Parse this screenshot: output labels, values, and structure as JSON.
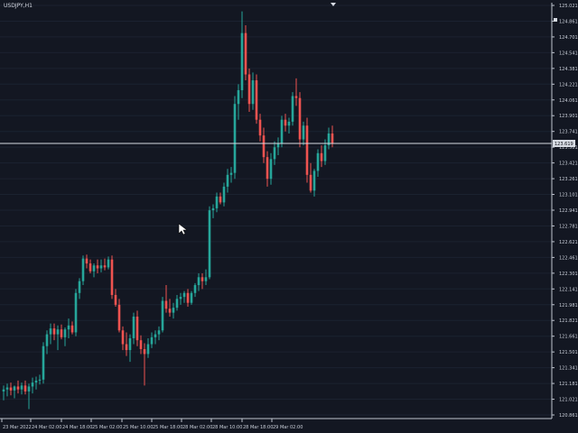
{
  "chart": {
    "symbol_label": "USDJPY,H1",
    "current_price_label": "123.619"
  },
  "colors": {
    "background": "#131722",
    "grid": "#1b2230",
    "axis": "#bfc4cf",
    "text": "#c9ced8",
    "bull": "#26a69a",
    "bear": "#ef5350",
    "current_line": "#d7dbe3"
  },
  "icons": {
    "top_marker": "triangle-down-icon",
    "right_marker": "small-square-icon",
    "cursor": "mouse-pointer-icon"
  },
  "chart_data": {
    "type": "candlestick",
    "title": "USDJPY,H1",
    "x_tick_labels": [
      "23 Mar 2022",
      "24 Mar 02:00",
      "24 Mar 18:00",
      "25 Mar 02:00",
      "25 Mar 10:00",
      "25 Mar 18:00",
      "28 Mar 02:00",
      "28 Mar 10:00",
      "28 Mar 18:00",
      "29 Mar 02:00"
    ],
    "y_ticks": [
      125.021,
      124.861,
      124.701,
      124.541,
      124.381,
      124.221,
      124.061,
      123.901,
      123.741,
      123.581,
      123.421,
      123.261,
      123.101,
      122.941,
      122.781,
      122.621,
      122.461,
      122.301,
      122.141,
      121.981,
      121.821,
      121.661,
      121.501,
      121.341,
      121.181,
      121.021,
      120.861
    ],
    "ylim": [
      120.861,
      125.021
    ],
    "current_price": 123.619,
    "candles": [
      {
        "o": 121.1,
        "h": 121.16,
        "l": 121.01,
        "c": 121.12
      },
      {
        "o": 121.12,
        "h": 121.18,
        "l": 121.05,
        "c": 121.14
      },
      {
        "o": 121.14,
        "h": 121.19,
        "l": 121.06,
        "c": 121.11
      },
      {
        "o": 121.11,
        "h": 121.16,
        "l": 121.03,
        "c": 121.15
      },
      {
        "o": 121.15,
        "h": 121.21,
        "l": 121.08,
        "c": 121.12
      },
      {
        "o": 121.12,
        "h": 121.19,
        "l": 121.07,
        "c": 121.16
      },
      {
        "o": 121.16,
        "h": 121.21,
        "l": 121.07,
        "c": 121.1
      },
      {
        "o": 121.1,
        "h": 121.18,
        "l": 120.92,
        "c": 121.15
      },
      {
        "o": 121.15,
        "h": 121.24,
        "l": 121.08,
        "c": 121.19
      },
      {
        "o": 121.19,
        "h": 121.25,
        "l": 121.12,
        "c": 121.21
      },
      {
        "o": 121.21,
        "h": 121.27,
        "l": 121.17,
        "c": 121.22
      },
      {
        "o": 121.22,
        "h": 121.6,
        "l": 121.18,
        "c": 121.56
      },
      {
        "o": 121.56,
        "h": 121.72,
        "l": 121.48,
        "c": 121.68
      },
      {
        "o": 121.68,
        "h": 121.79,
        "l": 121.58,
        "c": 121.74
      },
      {
        "o": 121.74,
        "h": 121.79,
        "l": 121.62,
        "c": 121.68
      },
      {
        "o": 121.68,
        "h": 121.77,
        "l": 121.52,
        "c": 121.73
      },
      {
        "o": 121.73,
        "h": 121.78,
        "l": 121.63,
        "c": 121.65
      },
      {
        "o": 121.65,
        "h": 121.75,
        "l": 121.56,
        "c": 121.73
      },
      {
        "o": 121.73,
        "h": 121.84,
        "l": 121.64,
        "c": 121.77
      },
      {
        "o": 121.77,
        "h": 121.81,
        "l": 121.68,
        "c": 121.7
      },
      {
        "o": 121.7,
        "h": 122.14,
        "l": 121.66,
        "c": 122.1
      },
      {
        "o": 122.1,
        "h": 122.25,
        "l": 122.04,
        "c": 122.22
      },
      {
        "o": 122.22,
        "h": 122.48,
        "l": 122.18,
        "c": 122.45
      },
      {
        "o": 122.45,
        "h": 122.49,
        "l": 122.35,
        "c": 122.4
      },
      {
        "o": 122.4,
        "h": 122.44,
        "l": 122.3,
        "c": 122.32
      },
      {
        "o": 122.32,
        "h": 122.4,
        "l": 122.26,
        "c": 122.38
      },
      {
        "o": 122.38,
        "h": 122.44,
        "l": 122.3,
        "c": 122.35
      },
      {
        "o": 122.35,
        "h": 122.44,
        "l": 122.31,
        "c": 122.38
      },
      {
        "o": 122.38,
        "h": 122.45,
        "l": 122.33,
        "c": 122.36
      },
      {
        "o": 122.36,
        "h": 122.47,
        "l": 122.34,
        "c": 122.44
      },
      {
        "o": 122.44,
        "h": 122.48,
        "l": 122.04,
        "c": 122.08
      },
      {
        "o": 122.08,
        "h": 122.14,
        "l": 121.96,
        "c": 121.98
      },
      {
        "o": 121.98,
        "h": 122.04,
        "l": 121.7,
        "c": 121.72
      },
      {
        "o": 121.72,
        "h": 121.76,
        "l": 121.52,
        "c": 121.58
      },
      {
        "o": 121.58,
        "h": 121.7,
        "l": 121.46,
        "c": 121.52
      },
      {
        "o": 121.52,
        "h": 121.68,
        "l": 121.4,
        "c": 121.64
      },
      {
        "o": 121.64,
        "h": 121.9,
        "l": 121.58,
        "c": 121.86
      },
      {
        "o": 121.86,
        "h": 121.92,
        "l": 121.56,
        "c": 121.62
      },
      {
        "o": 121.62,
        "h": 121.67,
        "l": 121.48,
        "c": 121.53
      },
      {
        "o": 121.53,
        "h": 121.59,
        "l": 121.16,
        "c": 121.48
      },
      {
        "o": 121.48,
        "h": 121.64,
        "l": 121.44,
        "c": 121.58
      },
      {
        "o": 121.58,
        "h": 121.7,
        "l": 121.54,
        "c": 121.65
      },
      {
        "o": 121.65,
        "h": 121.72,
        "l": 121.58,
        "c": 121.68
      },
      {
        "o": 121.68,
        "h": 121.76,
        "l": 121.62,
        "c": 121.72
      },
      {
        "o": 121.72,
        "h": 122.06,
        "l": 121.7,
        "c": 122.02
      },
      {
        "o": 122.02,
        "h": 122.18,
        "l": 121.9,
        "c": 121.94
      },
      {
        "o": 121.94,
        "h": 122.04,
        "l": 121.86,
        "c": 121.9
      },
      {
        "o": 121.9,
        "h": 122.0,
        "l": 121.84,
        "c": 121.95
      },
      {
        "o": 121.95,
        "h": 122.08,
        "l": 121.92,
        "c": 122.04
      },
      {
        "o": 122.04,
        "h": 122.1,
        "l": 121.98,
        "c": 122.06
      },
      {
        "o": 122.06,
        "h": 122.12,
        "l": 122.0,
        "c": 122.1
      },
      {
        "o": 122.1,
        "h": 122.14,
        "l": 121.96,
        "c": 122.0
      },
      {
        "o": 122.0,
        "h": 122.12,
        "l": 121.98,
        "c": 122.1
      },
      {
        "o": 122.1,
        "h": 122.2,
        "l": 122.06,
        "c": 122.18
      },
      {
        "o": 122.18,
        "h": 122.3,
        "l": 122.12,
        "c": 122.26
      },
      {
        "o": 122.26,
        "h": 122.3,
        "l": 122.14,
        "c": 122.22
      },
      {
        "o": 122.22,
        "h": 122.34,
        "l": 122.18,
        "c": 122.26
      },
      {
        "o": 122.26,
        "h": 122.98,
        "l": 122.24,
        "c": 122.94
      },
      {
        "o": 122.94,
        "h": 123.0,
        "l": 122.86,
        "c": 122.96
      },
      {
        "o": 122.96,
        "h": 123.12,
        "l": 122.92,
        "c": 123.08
      },
      {
        "o": 123.08,
        "h": 123.12,
        "l": 123.0,
        "c": 123.02
      },
      {
        "o": 123.02,
        "h": 123.22,
        "l": 122.98,
        "c": 123.18
      },
      {
        "o": 123.18,
        "h": 123.36,
        "l": 123.12,
        "c": 123.3
      },
      {
        "o": 123.3,
        "h": 123.38,
        "l": 123.22,
        "c": 123.32
      },
      {
        "o": 123.32,
        "h": 124.1,
        "l": 123.26,
        "c": 124.02
      },
      {
        "o": 124.02,
        "h": 124.22,
        "l": 123.86,
        "c": 124.16
      },
      {
        "o": 124.16,
        "h": 124.96,
        "l": 124.08,
        "c": 124.74
      },
      {
        "o": 124.74,
        "h": 124.82,
        "l": 124.26,
        "c": 124.32
      },
      {
        "o": 124.32,
        "h": 124.38,
        "l": 123.94,
        "c": 124.02
      },
      {
        "o": 124.02,
        "h": 124.34,
        "l": 123.96,
        "c": 124.26
      },
      {
        "o": 124.26,
        "h": 124.32,
        "l": 123.82,
        "c": 123.86
      },
      {
        "o": 123.86,
        "h": 123.92,
        "l": 123.64,
        "c": 123.7
      },
      {
        "o": 123.7,
        "h": 123.78,
        "l": 123.42,
        "c": 123.48
      },
      {
        "o": 123.48,
        "h": 123.54,
        "l": 123.18,
        "c": 123.26
      },
      {
        "o": 123.26,
        "h": 123.52,
        "l": 123.2,
        "c": 123.46
      },
      {
        "o": 123.46,
        "h": 123.64,
        "l": 123.4,
        "c": 123.58
      },
      {
        "o": 123.58,
        "h": 123.68,
        "l": 123.5,
        "c": 123.62
      },
      {
        "o": 123.62,
        "h": 123.9,
        "l": 123.58,
        "c": 123.86
      },
      {
        "o": 123.86,
        "h": 123.92,
        "l": 123.74,
        "c": 123.8
      },
      {
        "o": 123.8,
        "h": 123.88,
        "l": 123.72,
        "c": 123.84
      },
      {
        "o": 123.84,
        "h": 124.14,
        "l": 123.8,
        "c": 124.1
      },
      {
        "o": 124.1,
        "h": 124.28,
        "l": 124.0,
        "c": 124.08
      },
      {
        "o": 124.08,
        "h": 124.14,
        "l": 123.58,
        "c": 123.66
      },
      {
        "o": 123.66,
        "h": 123.84,
        "l": 123.6,
        "c": 123.8
      },
      {
        "o": 123.8,
        "h": 123.88,
        "l": 123.22,
        "c": 123.3
      },
      {
        "o": 123.3,
        "h": 123.42,
        "l": 123.12,
        "c": 123.14
      },
      {
        "o": 123.14,
        "h": 123.36,
        "l": 123.08,
        "c": 123.34
      },
      {
        "o": 123.34,
        "h": 123.56,
        "l": 123.28,
        "c": 123.52
      },
      {
        "o": 123.52,
        "h": 123.6,
        "l": 123.38,
        "c": 123.44
      },
      {
        "o": 123.44,
        "h": 123.66,
        "l": 123.4,
        "c": 123.6
      },
      {
        "o": 123.6,
        "h": 123.78,
        "l": 123.56,
        "c": 123.72
      },
      {
        "o": 123.72,
        "h": 123.8,
        "l": 123.58,
        "c": 123.62
      }
    ]
  }
}
